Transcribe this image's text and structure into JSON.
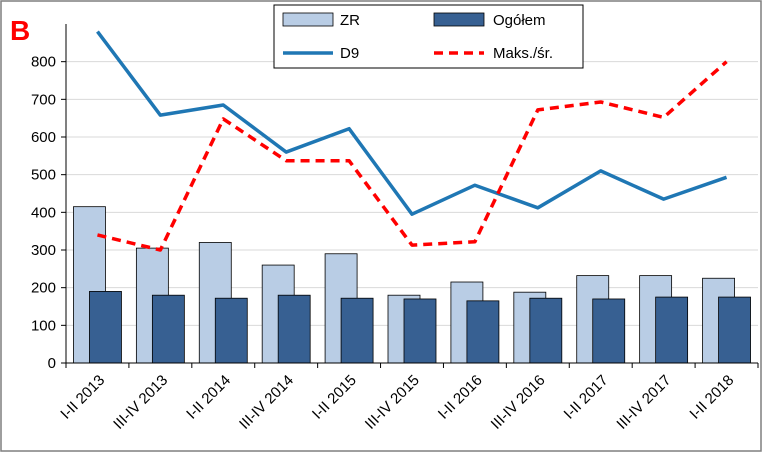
{
  "panel_label": "B",
  "colors": {
    "zr": "#b9cde5",
    "ogolem": "#376092",
    "d9": "#1f77b4",
    "maks": "#ff0000",
    "panel_label": "#ff0000",
    "bar_outline": "#000000",
    "grid": "#d9d9d9"
  },
  "chart_data": {
    "type": "bar",
    "categories": [
      "I-II 2013",
      "III-IV 2013",
      "I-II 2014",
      "III-IV 2014",
      "I-II 2015",
      "III-IV 2015",
      "I-II 2016",
      "III-IV 2016",
      "I-II 2017",
      "III-IV 2017",
      "I-II 2018"
    ],
    "ylim": [
      0,
      900
    ],
    "yticks": [
      0,
      100,
      200,
      300,
      400,
      500,
      600,
      700,
      800
    ],
    "grid": "horizontal",
    "legend_position": "top-center",
    "series": [
      {
        "name": "ZR",
        "kind": "bar",
        "values": [
          415,
          305,
          320,
          260,
          290,
          180,
          215,
          188,
          232,
          232,
          225
        ]
      },
      {
        "name": "Ogółem",
        "kind": "bar",
        "values": [
          190,
          180,
          172,
          180,
          172,
          170,
          165,
          172,
          170,
          175,
          175
        ]
      },
      {
        "name": "D9",
        "kind": "line",
        "style": "solid",
        "values": [
          880,
          658,
          685,
          560,
          622,
          395,
          472,
          412,
          510,
          435,
          493
        ]
      },
      {
        "name": "Maks./śr.",
        "kind": "line",
        "style": "dashed",
        "values": [
          340,
          300,
          648,
          537,
          537,
          313,
          322,
          672,
          693,
          652,
          800
        ]
      }
    ]
  }
}
